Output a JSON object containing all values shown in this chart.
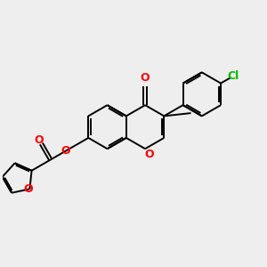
{
  "background_color": "#eeeeee",
  "bond_color": "#000000",
  "oxygen_color": "#ff0000",
  "chlorine_color": "#00bb00",
  "line_width": 1.4,
  "figsize": [
    3.0,
    3.0
  ],
  "dpi": 100,
  "xlim": [
    0,
    12
  ],
  "ylim": [
    0,
    12
  ]
}
